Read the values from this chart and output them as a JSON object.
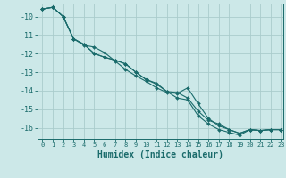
{
  "xlabel": "Humidex (Indice chaleur)",
  "bg_color": "#cce8e8",
  "grid_color": "#aacccc",
  "line_color": "#1a6b6b",
  "xlim": [
    -0.5,
    23.2
  ],
  "ylim": [
    -16.6,
    -9.3
  ],
  "x": [
    0,
    1,
    2,
    3,
    4,
    5,
    6,
    7,
    8,
    9,
    10,
    11,
    12,
    13,
    14,
    15,
    16,
    17,
    18,
    19,
    20,
    21,
    22,
    23
  ],
  "line1": [
    -9.6,
    -9.5,
    -10.0,
    -11.2,
    -11.5,
    -12.0,
    -12.2,
    -12.35,
    -12.55,
    -13.0,
    -13.4,
    -13.6,
    -14.05,
    -14.1,
    -14.4,
    -15.1,
    -15.6,
    -15.8,
    -16.1,
    -16.3,
    -16.1,
    -16.15,
    -16.1,
    -16.1
  ],
  "line2": [
    -9.6,
    -9.5,
    -10.0,
    -11.2,
    -11.5,
    -12.0,
    -12.2,
    -12.35,
    -12.55,
    -13.0,
    -13.4,
    -13.65,
    -14.05,
    -14.4,
    -14.5,
    -15.35,
    -15.8,
    -16.1,
    -16.25,
    -16.4,
    -16.1,
    -16.15,
    -16.1,
    -16.1
  ],
  "line3": [
    -9.6,
    -9.5,
    -10.0,
    -11.2,
    -11.55,
    -11.65,
    -11.95,
    -12.4,
    -12.85,
    -13.2,
    -13.5,
    -13.85,
    -14.1,
    -14.15,
    -13.85,
    -14.7,
    -15.5,
    -15.9,
    -16.1,
    -16.3,
    -16.1,
    -16.15,
    -16.1,
    -16.1
  ],
  "yticks": [
    -10,
    -11,
    -12,
    -13,
    -14,
    -15,
    -16
  ],
  "xticks": [
    0,
    1,
    2,
    3,
    4,
    5,
    6,
    7,
    8,
    9,
    10,
    11,
    12,
    13,
    14,
    15,
    16,
    17,
    18,
    19,
    20,
    21,
    22,
    23
  ]
}
